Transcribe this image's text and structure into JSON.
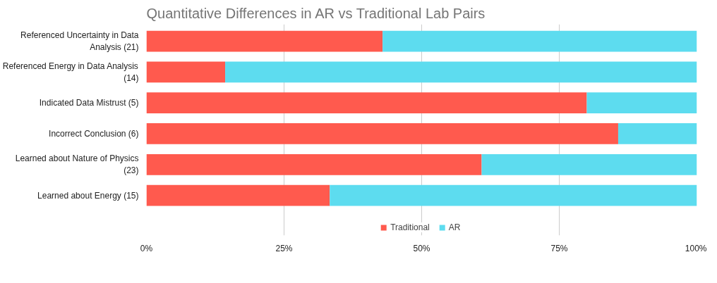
{
  "chart_data": {
    "type": "bar",
    "title": "Quantitative Differences in AR vs Traditional Lab Pairs",
    "orientation": "horizontal",
    "stacked": true,
    "categories": [
      "Referenced Uncertainty in Data Analysis (21)",
      "Referenced Energy in Data Analysis (14)",
      "Indicated Data Mistrust (5)",
      "Incorrect Conclusion (6)",
      "Learned about Nature of Physics (23)",
      "Learned about Energy (15)"
    ],
    "series": [
      {
        "name": "Traditional",
        "color": "#ff5a4e",
        "values": [
          42.9,
          14.3,
          80,
          85.7,
          60.9,
          33.3
        ]
      },
      {
        "name": "AR",
        "color": "#5ddcef",
        "values": [
          57.1,
          85.7,
          20,
          14.3,
          39.1,
          66.7
        ]
      }
    ],
    "xlim": [
      0,
      100
    ],
    "xticks": [
      {
        "value": 0,
        "label": "0%"
      },
      {
        "value": 25,
        "label": "25%"
      },
      {
        "value": 50,
        "label": "50%"
      },
      {
        "value": 75,
        "label": "75%"
      },
      {
        "value": 100,
        "label": "100%"
      }
    ],
    "grid": "x",
    "legend": "bottom"
  }
}
